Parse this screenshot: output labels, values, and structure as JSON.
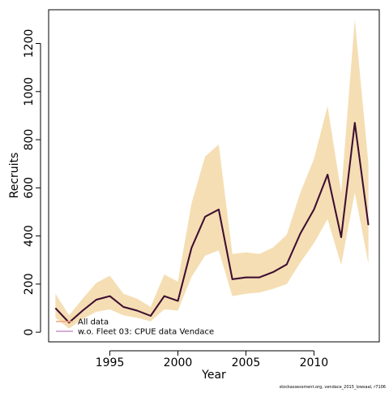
{
  "chart_data": {
    "type": "line",
    "title": "",
    "xlabel": "Year",
    "ylabel": "Recruits",
    "xlim": [
      1990.5,
      2014.8
    ],
    "ylim": [
      -40,
      1340
    ],
    "x_ticks": [
      1995,
      2000,
      2005,
      2010
    ],
    "y_ticks": [
      0,
      200,
      400,
      600,
      800,
      1000,
      1200
    ],
    "x_tick_labels": [
      "1995",
      "2000",
      "2005",
      "2010"
    ],
    "y_tick_labels": [
      "0",
      "200",
      "400",
      "600",
      "800",
      "1000",
      "1200"
    ],
    "grid": false,
    "legend_position": "bottom-left",
    "x": [
      1991,
      1992,
      1993,
      1994,
      1995,
      1996,
      1997,
      1998,
      1999,
      2000,
      2001,
      2002,
      2003,
      2004,
      2005,
      2006,
      2007,
      2008,
      2009,
      2010,
      2011,
      2012,
      2013,
      2014
    ],
    "series": [
      {
        "name": "All data",
        "color": "#f4a582",
        "values": [
          100,
          40,
          90,
          135,
          150,
          105,
          90,
          68,
          150,
          130,
          350,
          480,
          510,
          220,
          228,
          228,
          250,
          282,
          410,
          510,
          655,
          395,
          870,
          445
        ]
      },
      {
        "name": "w.o. Fleet 03:  CPUE data Vendace",
        "color": "#c994c7",
        "values": [
          100,
          40,
          90,
          135,
          150,
          105,
          90,
          68,
          150,
          130,
          350,
          480,
          510,
          220,
          228,
          228,
          250,
          282,
          410,
          510,
          655,
          395,
          870,
          445
        ]
      }
    ],
    "band": {
      "color": "#f5deb3",
      "lower": [
        60,
        15,
        55,
        85,
        95,
        70,
        60,
        45,
        95,
        90,
        230,
        318,
        340,
        150,
        160,
        165,
        180,
        200,
        290,
        370,
        470,
        280,
        580,
        285
      ],
      "upper": [
        160,
        70,
        140,
        205,
        235,
        160,
        140,
        105,
        240,
        210,
        535,
        730,
        780,
        325,
        332,
        325,
        352,
        405,
        580,
        720,
        940,
        580,
        1300,
        700
      ]
    },
    "line_color": "#3b0f2f"
  },
  "footer_credit": "stockassessment.org, vendace_2015_lowsaal, r7106"
}
